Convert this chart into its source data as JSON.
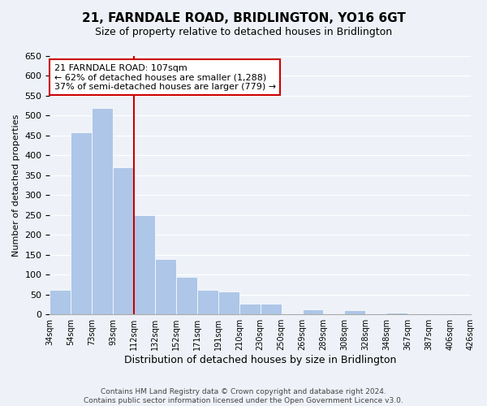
{
  "title": "21, FARNDALE ROAD, BRIDLINGTON, YO16 6GT",
  "subtitle": "Size of property relative to detached houses in Bridlington",
  "xlabel": "Distribution of detached houses by size in Bridlington",
  "ylabel": "Number of detached properties",
  "bar_values": [
    62,
    457,
    520,
    370,
    250,
    140,
    95,
    62,
    58,
    28,
    28,
    0,
    12,
    0,
    10,
    0,
    5,
    0,
    2,
    0
  ],
  "categories": [
    "34sqm",
    "54sqm",
    "73sqm",
    "93sqm",
    "112sqm",
    "132sqm",
    "152sqm",
    "171sqm",
    "191sqm",
    "210sqm",
    "230sqm",
    "250sqm",
    "269sqm",
    "289sqm",
    "308sqm",
    "328sqm",
    "348sqm",
    "367sqm",
    "387sqm",
    "406sqm",
    "426sqm"
  ],
  "bar_color": "#aec6e8",
  "vertical_line_color": "#cc0000",
  "annotation_text": "21 FARNDALE ROAD: 107sqm\n← 62% of detached houses are smaller (1,288)\n37% of semi-detached houses are larger (779) →",
  "annotation_box_color": "#ffffff",
  "annotation_box_edge": "#cc0000",
  "ylim": [
    0,
    650
  ],
  "yticks": [
    0,
    50,
    100,
    150,
    200,
    250,
    300,
    350,
    400,
    450,
    500,
    550,
    600,
    650
  ],
  "footer_line1": "Contains HM Land Registry data © Crown copyright and database right 2024.",
  "footer_line2": "Contains public sector information licensed under the Open Government Licence v3.0.",
  "bg_color": "#eef2f8",
  "plot_bg_color": "#eef2f8"
}
